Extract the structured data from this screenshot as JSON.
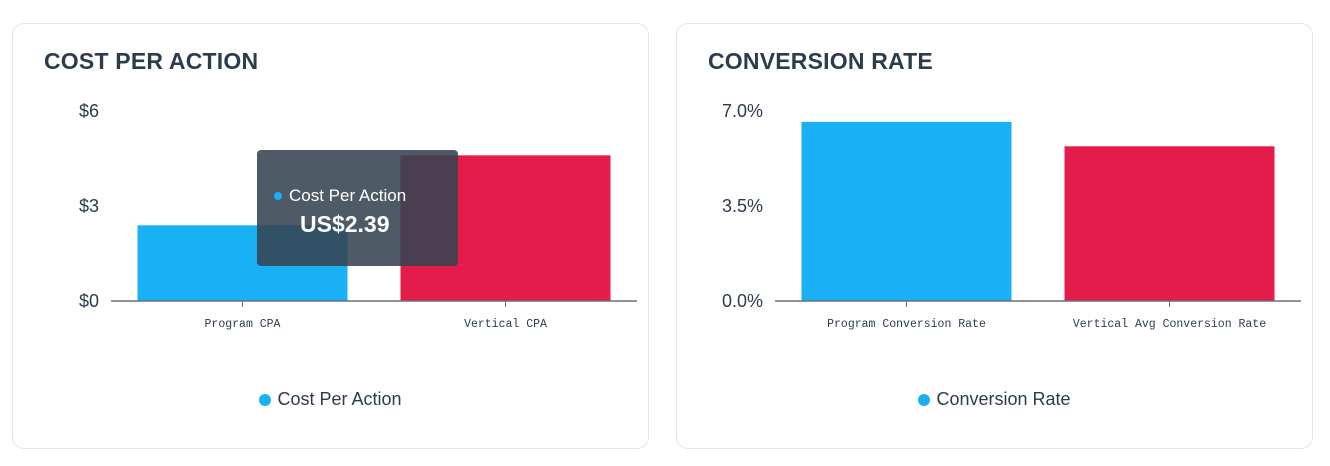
{
  "colors": {
    "primary": "#1ab0f5",
    "secondary": "#e31c4b",
    "axis": "#6b6f75",
    "text": "#2d3b4e"
  },
  "cards": [
    {
      "title": "COST PER ACTION",
      "legend_label": "Cost Per Action",
      "tooltip": {
        "label": "Cost Per Action",
        "value": "US$2.39"
      }
    },
    {
      "title": "CONVERSION RATE",
      "legend_label": "Conversion Rate"
    }
  ],
  "chart_data": [
    {
      "type": "bar",
      "title": "COST PER ACTION",
      "categories": [
        "Program CPA",
        "Vertical CPA"
      ],
      "values": [
        2.39,
        4.6
      ],
      "bar_colors": [
        "#1ab0f5",
        "#e31c4b"
      ],
      "ylim": [
        0,
        6
      ],
      "yticks": [
        0,
        3,
        6
      ],
      "ytick_labels": [
        "$0",
        "$3",
        "$6"
      ],
      "legend": [
        "Cost Per Action"
      ],
      "legend_position": "bottom-center",
      "grid": false
    },
    {
      "type": "bar",
      "title": "CONVERSION RATE",
      "categories": [
        "Program Conversion Rate",
        "Vertical Avg Conversion Rate"
      ],
      "values": [
        6.6,
        5.7
      ],
      "bar_colors": [
        "#1ab0f5",
        "#e31c4b"
      ],
      "ylim": [
        0,
        7
      ],
      "yticks": [
        0,
        3.5,
        7
      ],
      "ytick_labels": [
        "0.0%",
        "3.5%",
        "7.0%"
      ],
      "legend": [
        "Conversion Rate"
      ],
      "legend_position": "bottom-center",
      "grid": false
    }
  ]
}
